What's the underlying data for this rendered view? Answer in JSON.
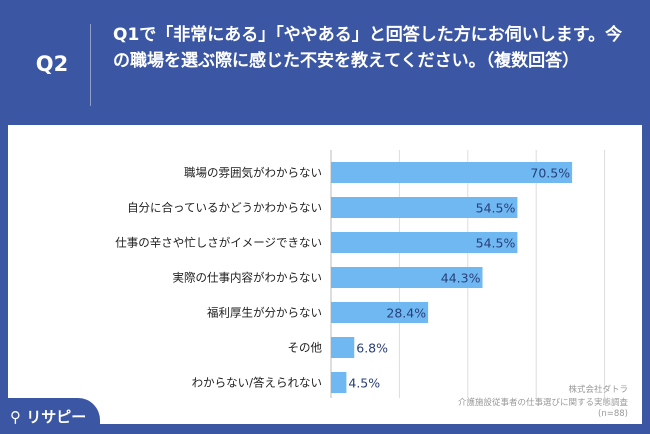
{
  "header": {
    "q": "Q2",
    "title": "Q1で「非常にある」「ややある」と回答した方にお伺いします。今の職場を選ぶ際に感じた不安を教えてください。（複数回答）"
  },
  "chart_data": {
    "type": "bar",
    "orientation": "horizontal",
    "categories": [
      "職場の雰囲気がわからない",
      "自分に合っているかどうかわからない",
      "仕事の辛さや忙しさがイメージできない",
      "実際の仕事内容がわからない",
      "福利厚生が分からない",
      "その他",
      "わからない/答えられない"
    ],
    "values": [
      70.5,
      54.5,
      54.5,
      44.3,
      28.4,
      6.8,
      4.5
    ],
    "value_labels": [
      "70.5%",
      "54.5%",
      "54.5%",
      "44.3%",
      "28.4%",
      "6.8%",
      "4.5%"
    ],
    "xlim": [
      0,
      100
    ],
    "grid": true,
    "bar_color": "#6fb8f2"
  },
  "source": {
    "company": "株式会社ダトラ",
    "survey": "介護施設従事者の仕事選びに関する実態調査",
    "n": "(n=88)"
  },
  "logo": {
    "text": "リサピー"
  }
}
